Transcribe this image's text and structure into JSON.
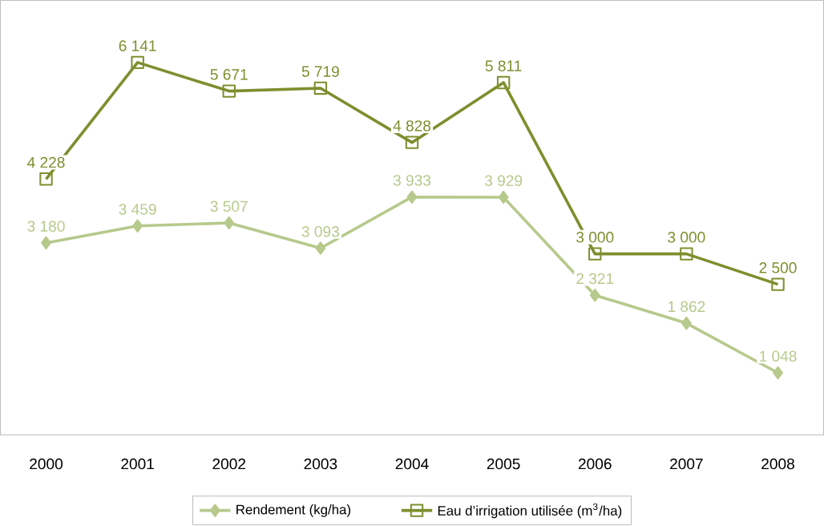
{
  "chart_data": {
    "type": "line",
    "categories": [
      "2000",
      "2001",
      "2002",
      "2003",
      "2004",
      "2005",
      "2006",
      "2007",
      "2008"
    ],
    "series": [
      {
        "name": "Rendement (kg/ha)",
        "color": "#b7c98c",
        "marker": "diamond",
        "values": [
          3180,
          3459,
          3507,
          3093,
          3933,
          3929,
          2321,
          1862,
          1048
        ],
        "value_labels": [
          "3 180",
          "3 459",
          "3 507",
          "3 093",
          "3 933",
          "3 929",
          "2 321",
          "1 862",
          "1 048"
        ]
      },
      {
        "name": "Eau d’irrigation utilisée (m$^{3}$/ha)",
        "color": "#7d8f2e",
        "marker": "square",
        "values": [
          4228,
          6141,
          5671,
          5719,
          4828,
          5811,
          3000,
          3000,
          2500
        ],
        "value_labels": [
          "4 228",
          "6 141",
          "5 671",
          "5 719",
          "4 828",
          "5 811",
          "3 000",
          "3 000",
          "2 500"
        ]
      }
    ],
    "legend": "bottom",
    "line_style": "solid"
  }
}
